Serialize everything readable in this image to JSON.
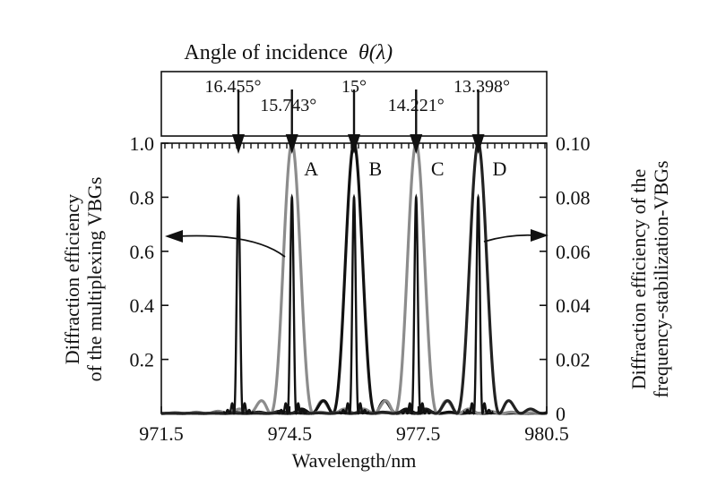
{
  "chart_data": {
    "type": "line",
    "top_axis_title": "Angle of incidence",
    "top_axis_symbol": "θ(λ)",
    "xlabel": "Wavelength/nm",
    "ylabel_left_line1": "Diffraction efficiency",
    "ylabel_left_line2": "of the multiplexing VBGs",
    "ylabel_right_line1": "Diffraction efficiency of the",
    "ylabel_right_line2": "frequency-stabilization-VBGs",
    "xlim": [
      971.5,
      980.5
    ],
    "ylim_left": [
      0,
      1.0
    ],
    "ylim_right": [
      0,
      0.1
    ],
    "x_ticks": [
      "971.5",
      "974.5",
      "977.5",
      "980.5"
    ],
    "y_ticks_left": [
      "0.2",
      "0.4",
      "0.6",
      "0.8",
      "1.0"
    ],
    "y_ticks_right": [
      "0",
      "0.02",
      "0.04",
      "0.06",
      "0.08",
      "0.10"
    ],
    "angle_labels": [
      {
        "label": "16.455°",
        "wavelength": 973.3
      },
      {
        "label": "15.743°",
        "wavelength": 974.55
      },
      {
        "label": "15°",
        "wavelength": 976.0
      },
      {
        "label": "14.221°",
        "wavelength": 977.45
      },
      {
        "label": "13.398°",
        "wavelength": 978.9
      }
    ],
    "peak_labels": [
      {
        "label": "A",
        "wavelength": 975.0,
        "y": 0.9
      },
      {
        "label": "B",
        "wavelength": 976.5,
        "y": 0.9
      },
      {
        "label": "C",
        "wavelength": 977.95,
        "y": 0.9
      },
      {
        "label": "D",
        "wavelength": 979.4,
        "y": 0.9
      }
    ],
    "multiplexing_peaks": [
      {
        "name": "A",
        "center": 974.55,
        "peak": 1.0,
        "halfwidth": 0.22,
        "color": "#8c8c8c"
      },
      {
        "name": "B",
        "center": 976.0,
        "peak": 1.0,
        "halfwidth": 0.22,
        "color": "#111111"
      },
      {
        "name": "C",
        "center": 977.45,
        "peak": 1.0,
        "halfwidth": 0.22,
        "color": "#8c8c8c"
      },
      {
        "name": "D",
        "center": 978.9,
        "peak": 1.0,
        "halfwidth": 0.22,
        "color": "#222222"
      }
    ],
    "stabilization_peaks": [
      {
        "center": 973.3,
        "peak": 0.08
      },
      {
        "center": 974.55,
        "peak": 0.08
      },
      {
        "center": 976.0,
        "peak": 0.08
      },
      {
        "center": 977.45,
        "peak": 0.08
      },
      {
        "center": 978.9,
        "peak": 0.08
      }
    ],
    "grid": false
  }
}
